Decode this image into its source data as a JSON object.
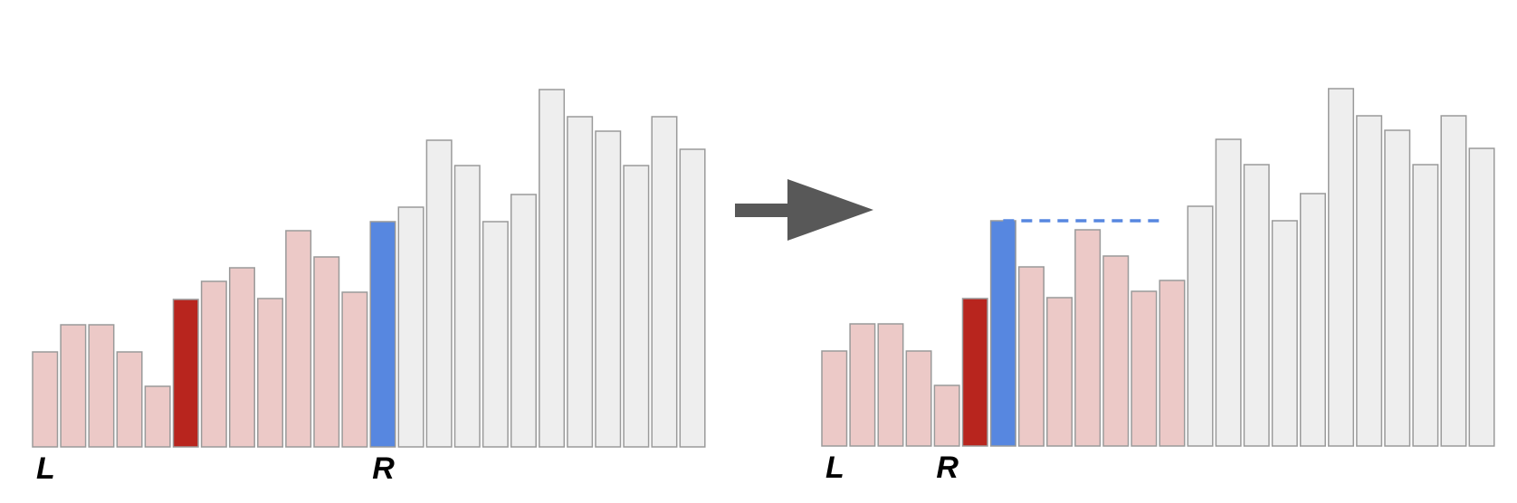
{
  "colors": {
    "in_window": "#ecc9c7",
    "outside": "#eeeeee",
    "highlight_red": "#b8251e",
    "highlight_blue": "#5787e0",
    "bar_border": "#9a9a9a",
    "arrow": "#585858",
    "dashed_line": "#5787e0"
  },
  "arrow": {
    "icon": "right-arrow-icon"
  },
  "panels": [
    {
      "id": "before",
      "pointer_labels": {
        "left": "L",
        "right": "R"
      },
      "left_pointer_bar": 0,
      "right_pointer_bar": 12,
      "bars": [
        {
          "height": 105,
          "state": "in_window"
        },
        {
          "height": 135,
          "state": "in_window"
        },
        {
          "height": 135,
          "state": "in_window"
        },
        {
          "height": 105,
          "state": "in_window"
        },
        {
          "height": 67,
          "state": "in_window"
        },
        {
          "height": 163,
          "state": "highlight_red"
        },
        {
          "height": 183,
          "state": "in_window"
        },
        {
          "height": 198,
          "state": "in_window"
        },
        {
          "height": 164,
          "state": "in_window"
        },
        {
          "height": 239,
          "state": "in_window"
        },
        {
          "height": 210,
          "state": "in_window"
        },
        {
          "height": 171,
          "state": "in_window"
        },
        {
          "height": 249,
          "state": "highlight_blue"
        },
        {
          "height": 265,
          "state": "outside"
        },
        {
          "height": 339,
          "state": "outside"
        },
        {
          "height": 311,
          "state": "outside"
        },
        {
          "height": 249,
          "state": "outside"
        },
        {
          "height": 279,
          "state": "outside"
        },
        {
          "height": 395,
          "state": "outside"
        },
        {
          "height": 365,
          "state": "outside"
        },
        {
          "height": 349,
          "state": "outside"
        },
        {
          "height": 311,
          "state": "outside"
        },
        {
          "height": 365,
          "state": "outside"
        },
        {
          "height": 329,
          "state": "outside"
        }
      ],
      "dashed_line": null
    },
    {
      "id": "after",
      "pointer_labels": {
        "left": "L",
        "right": "R"
      },
      "left_pointer_bar": 0,
      "right_pointer_bar": 4,
      "bars": [
        {
          "height": 105,
          "state": "in_window"
        },
        {
          "height": 135,
          "state": "in_window"
        },
        {
          "height": 135,
          "state": "in_window"
        },
        {
          "height": 105,
          "state": "in_window"
        },
        {
          "height": 67,
          "state": "in_window"
        },
        {
          "height": 163,
          "state": "highlight_red"
        },
        {
          "height": 249,
          "state": "highlight_blue"
        },
        {
          "height": 198,
          "state": "in_window"
        },
        {
          "height": 164,
          "state": "in_window"
        },
        {
          "height": 239,
          "state": "in_window"
        },
        {
          "height": 210,
          "state": "in_window"
        },
        {
          "height": 171,
          "state": "in_window"
        },
        {
          "height": 183,
          "state": "in_window"
        },
        {
          "height": 265,
          "state": "outside"
        },
        {
          "height": 339,
          "state": "outside"
        },
        {
          "height": 311,
          "state": "outside"
        },
        {
          "height": 249,
          "state": "outside"
        },
        {
          "height": 279,
          "state": "outside"
        },
        {
          "height": 395,
          "state": "outside"
        },
        {
          "height": 365,
          "state": "outside"
        },
        {
          "height": 349,
          "state": "outside"
        },
        {
          "height": 311,
          "state": "outside"
        },
        {
          "height": 365,
          "state": "outside"
        },
        {
          "height": 329,
          "state": "outside"
        }
      ],
      "dashed_line": {
        "level_from_bar": 6,
        "from_bar": 6,
        "to_bar": 12
      }
    }
  ]
}
